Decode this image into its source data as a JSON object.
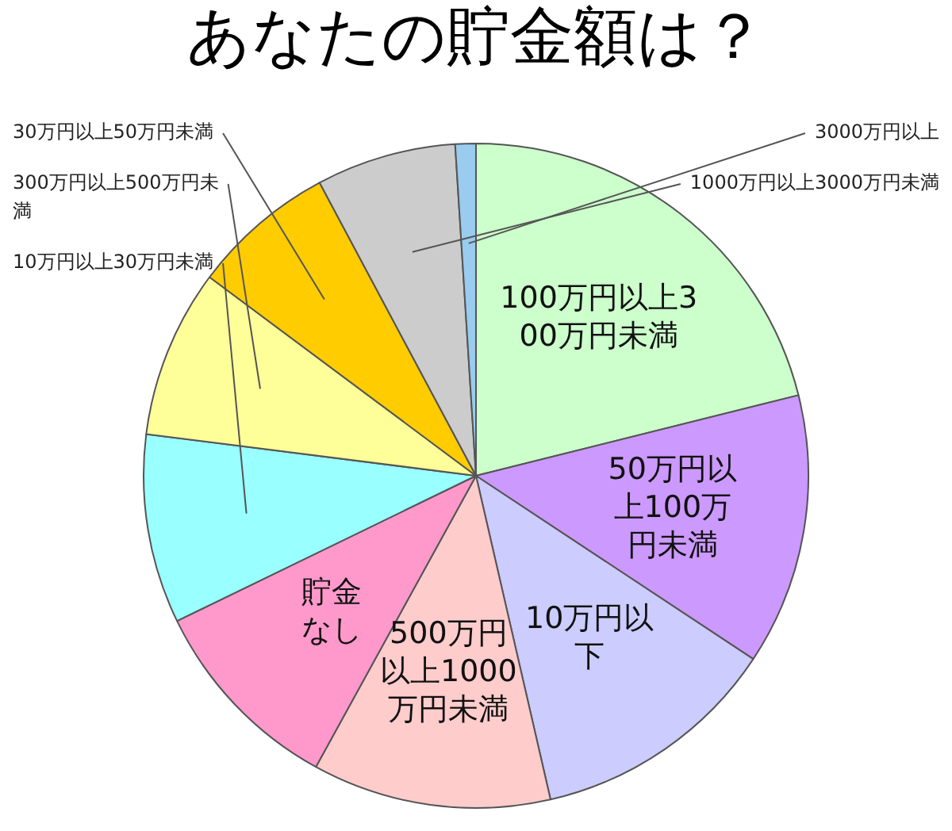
{
  "chart_data": {
    "type": "pie",
    "title": "あなたの貯金額は？",
    "categories": [
      "100万円以上300万円未満",
      "50万円以上100万円未満",
      "10万円以下",
      "500万円以上1000万円未満",
      "貯金なし",
      "10万円以上30万円未満",
      "300万円以上500万円未満",
      "30万円以上50万円未満",
      "1000万円以上3000万円未満",
      "3000万円以上"
    ],
    "values": [
      21.1,
      13.2,
      12.1,
      11.6,
      9.8,
      9.2,
      8.2,
      7.0,
      6.8,
      1.0
    ],
    "colors": [
      "#ccffcc",
      "#cc99ff",
      "#ccccff",
      "#ffcccc",
      "#ff99cc",
      "#99ffff",
      "#ffff99",
      "#ffcc00",
      "#cccccc",
      "#99ccee"
    ],
    "legend": false
  }
}
